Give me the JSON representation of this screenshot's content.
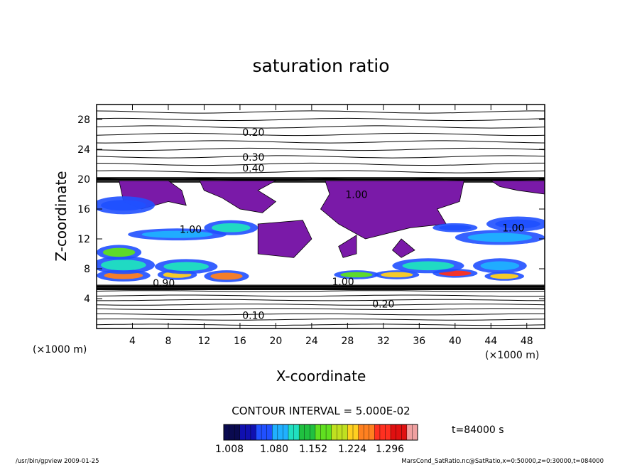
{
  "chart_data": {
    "type": "contour",
    "title": "saturation ratio",
    "xlabel": "X-coordinate",
    "ylabel": "Z-coordinate",
    "x_unit_note": "(×1000 m)",
    "y_unit_note": "(×1000 m)",
    "xlim": [
      0,
      50
    ],
    "ylim": [
      0,
      30
    ],
    "xticks": [
      4,
      8,
      12,
      16,
      20,
      24,
      28,
      32,
      36,
      40,
      44,
      48
    ],
    "yticks": [
      4,
      8,
      12,
      16,
      20,
      24,
      28
    ],
    "contour_interval_text": "CONTOUR INTERVAL = 5.000E-02",
    "time_label": "t=84000 s",
    "colorbar": {
      "ticks": [
        "1.008",
        "1.080",
        "1.152",
        "1.224",
        "1.296"
      ],
      "colors": [
        "#0a0a50",
        "#1010b0",
        "#2050ff",
        "#20b0ff",
        "#20e0c0",
        "#20c040",
        "#60e020",
        "#c0e020",
        "#ffd020",
        "#ff8020",
        "#ff3020",
        "#e01010",
        "#f0a0a0"
      ]
    },
    "contour_labels": [
      {
        "text": "0.20",
        "x": 17.5,
        "y": 25.8
      },
      {
        "text": "0.30",
        "x": 17.5,
        "y": 22.5
      },
      {
        "text": "0.40",
        "x": 17.5,
        "y": 21.0
      },
      {
        "text": "1.00",
        "x": 29.0,
        "y": 17.5
      },
      {
        "text": "1.00",
        "x": 10.5,
        "y": 12.8
      },
      {
        "text": "1.00",
        "x": 46.5,
        "y": 13.0
      },
      {
        "text": "0.90",
        "x": 7.5,
        "y": 5.6
      },
      {
        "text": "1.00",
        "x": 27.5,
        "y": 5.8
      },
      {
        "text": "0.20",
        "x": 32.0,
        "y": 2.8
      },
      {
        "text": "0.10",
        "x": 17.5,
        "y": 1.3
      }
    ],
    "regions": {
      "stratified_upper_levels": [
        20,
        21,
        22,
        23,
        24,
        25,
        26,
        27,
        28,
        29
      ],
      "stratified_lower_levels": [
        0.5,
        1.2,
        1.9,
        2.6,
        3.2,
        3.8,
        4.4,
        5.0
      ],
      "supersaturated_colors": [
        "#7a1aa8",
        "#ffffff"
      ]
    },
    "grid": false,
    "legend": "bottom-center"
  },
  "footer": {
    "left": "/usr/bin/gpview   2009-01-25",
    "right": "MarsCond_SatRatio.nc@SatRatio,x=0:50000,z=0:30000,t=084000"
  }
}
